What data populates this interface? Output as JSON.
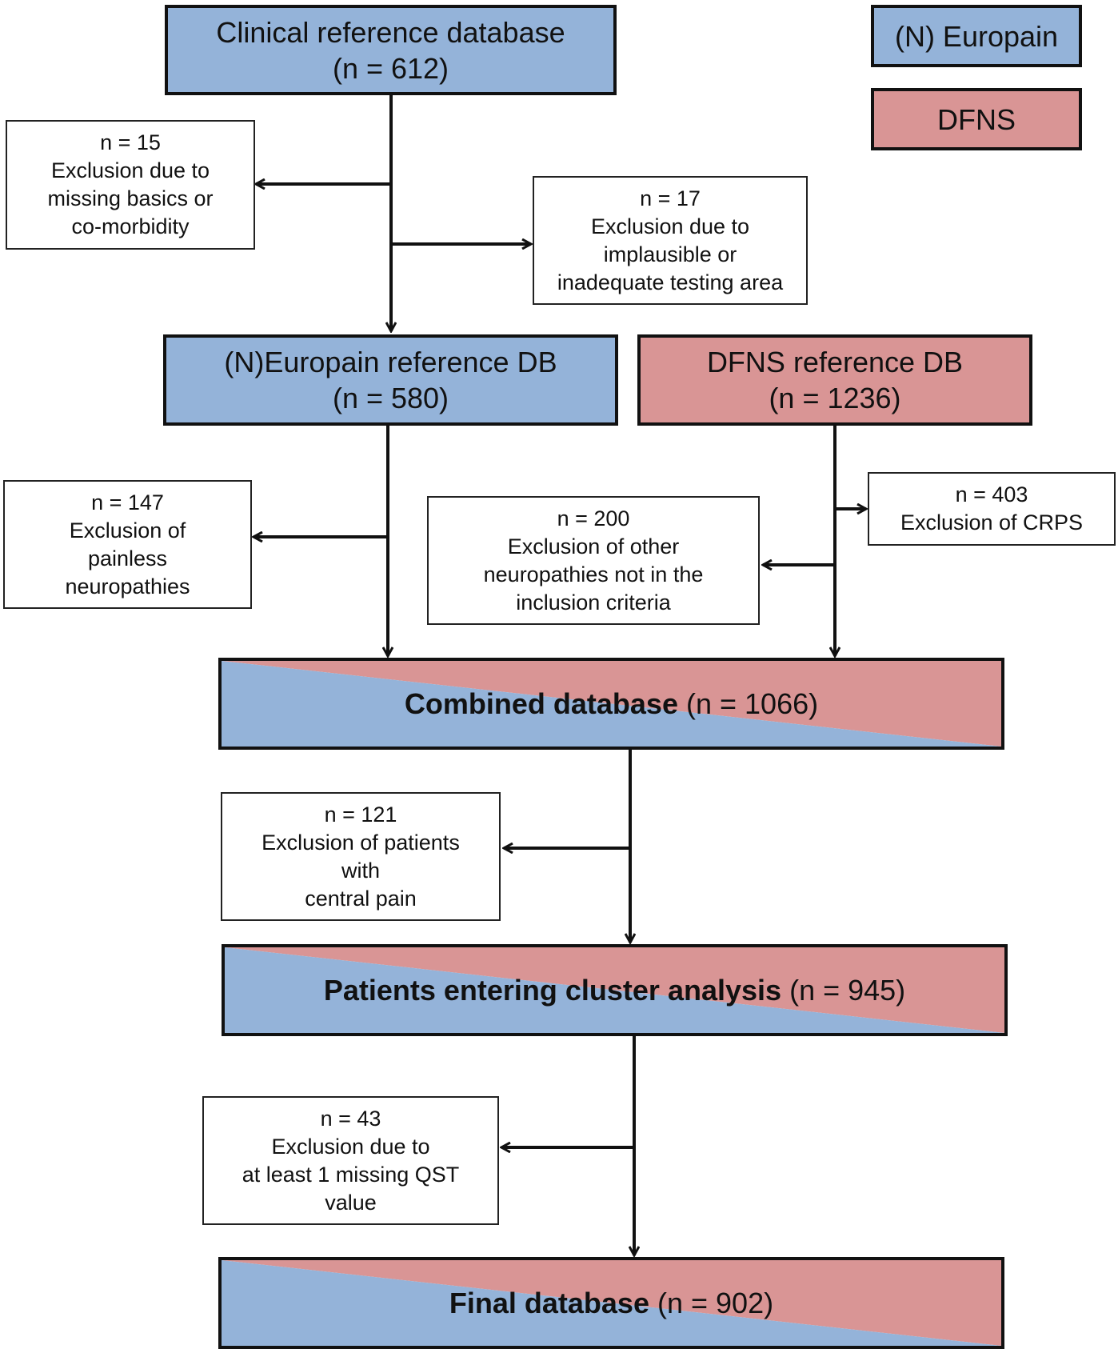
{
  "legend": {
    "europain": {
      "label": "(N) Europain",
      "color": "#94b3d9"
    },
    "dfns": {
      "label": "DFNS",
      "color": "#d99595"
    }
  },
  "nodes": {
    "clinical": {
      "line1": "Clinical reference database",
      "line2": "(n = 612)"
    },
    "europain_db": {
      "line1": "(N)Europain reference DB",
      "line2": "(n = 580)"
    },
    "dfns_db": {
      "line1": "DFNS reference DB",
      "line2": "(n = 1236)"
    },
    "combined": {
      "bold": "Combined database",
      "count": "(n = 1066)"
    },
    "cluster": {
      "bold": "Patients entering cluster analysis",
      "count": "(n = 945)"
    },
    "final": {
      "bold": "Final database",
      "count": "(n = 902)"
    }
  },
  "exclusions": {
    "e15": [
      "n = 15",
      "Exclusion due to",
      "missing basics or",
      "co-morbidity"
    ],
    "e17": [
      "n = 17",
      "Exclusion due to",
      "implausible or",
      "inadequate testing area"
    ],
    "e147": [
      "n = 147",
      "Exclusion of",
      "painless",
      "neuropathies"
    ],
    "e200": [
      "n = 200",
      "Exclusion of other",
      "neuropathies not in the",
      "inclusion criteria"
    ],
    "e403": [
      "n = 403",
      "Exclusion of CRPS"
    ],
    "e121": [
      "n = 121",
      "Exclusion of patients",
      "with",
      "central pain"
    ],
    "e43": [
      "n = 43",
      "Exclusion due to",
      "at least 1 missing QST",
      "value"
    ]
  }
}
